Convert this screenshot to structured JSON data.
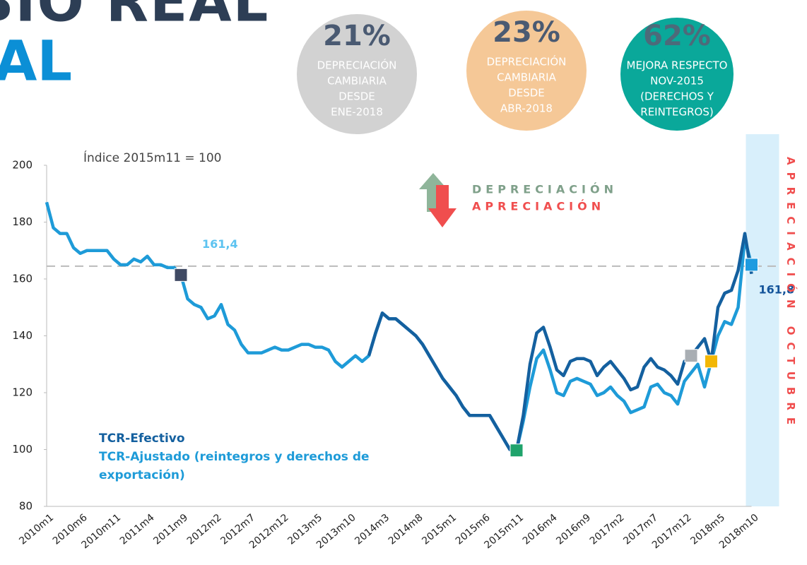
{
  "chart_data": {
    "type": "line",
    "title_fragments": [
      "BIO REAL",
      "AL"
    ],
    "subtitle": "Índice 2015m11 = 100",
    "categories": [
      "2010m1",
      null,
      null,
      null,
      null,
      "2010m6",
      null,
      null,
      null,
      null,
      "2010m11",
      null,
      null,
      null,
      null,
      "2011m4",
      null,
      null,
      null,
      null,
      "2011m9",
      null,
      null,
      null,
      null,
      "2012m2",
      null,
      null,
      null,
      null,
      "2012m7",
      null,
      null,
      null,
      null,
      "2012m12",
      null,
      null,
      null,
      null,
      "2013m5",
      null,
      null,
      null,
      null,
      "2013m10",
      null,
      null,
      null,
      null,
      "2014m3",
      null,
      null,
      null,
      null,
      "2014m8",
      null,
      null,
      null,
      null,
      "2015m1",
      null,
      null,
      null,
      null,
      "2015m6",
      null,
      null,
      null,
      null,
      "2015m11",
      null,
      null,
      null,
      null,
      "2016m4",
      null,
      null,
      null,
      null,
      "2016m9",
      null,
      null,
      null,
      null,
      "2017m2",
      null,
      null,
      null,
      null,
      "2017m7",
      null,
      null,
      null,
      null,
      "2017m12",
      null,
      null,
      null,
      null,
      "2018m5",
      null,
      null,
      null,
      null,
      "2018m10"
    ],
    "series": [
      {
        "name": "TCR-Efectivo",
        "color": "#14609f",
        "values": [
          null,
          null,
          null,
          null,
          null,
          null,
          null,
          null,
          null,
          null,
          null,
          null,
          null,
          null,
          null,
          null,
          null,
          null,
          null,
          null,
          null,
          null,
          null,
          null,
          null,
          null,
          null,
          null,
          null,
          null,
          null,
          null,
          null,
          null,
          null,
          null,
          null,
          null,
          null,
          null,
          null,
          null,
          null,
          null,
          null,
          null,
          null,
          null,
          133,
          141,
          148,
          146,
          146,
          144,
          142,
          140,
          137,
          133,
          129,
          125,
          122,
          119,
          115,
          112,
          112,
          112,
          112,
          108,
          104,
          100,
          99.7,
          112,
          130,
          141,
          143,
          136,
          128,
          126,
          131,
          132,
          132,
          131,
          126,
          129,
          131,
          128,
          125,
          121,
          122,
          129,
          132,
          129,
          128,
          126,
          123,
          131,
          133,
          136,
          139,
          131,
          150,
          155,
          156,
          163,
          176,
          161.8
        ]
      },
      {
        "name": "TCR-Ajustado (reintegros y derechos de exportación)",
        "color": "#1e9bd8",
        "values": [
          187,
          178,
          176,
          176,
          171,
          169,
          170,
          170,
          170,
          170,
          167,
          165,
          165,
          167,
          166,
          168,
          165,
          165,
          164,
          164,
          161.4,
          153,
          151,
          150,
          146,
          147,
          151,
          144,
          142,
          137,
          134,
          134,
          134,
          135,
          136,
          135,
          135,
          136,
          137,
          137,
          136,
          136,
          135,
          131,
          129,
          131,
          133,
          131,
          133,
          141,
          148,
          146,
          146,
          144,
          142,
          140,
          137,
          133,
          129,
          125,
          122,
          119,
          115,
          112,
          112,
          112,
          112,
          108,
          104,
          100,
          99.7,
          110,
          122,
          132,
          135,
          128,
          120,
          119,
          124,
          125,
          124,
          123,
          119,
          120,
          122,
          119,
          117,
          113,
          114,
          115,
          122,
          123,
          120,
          119,
          116,
          124,
          127,
          130,
          122,
          131,
          140,
          145,
          144,
          150,
          174,
          165
        ]
      }
    ],
    "ylim": [
      80,
      200
    ],
    "yticks": [
      80,
      100,
      120,
      140,
      160,
      180,
      200
    ],
    "reference_line": 164.5,
    "highlight": {
      "index": 105,
      "color": "#d8effb",
      "text": "APRECIACIÓN OCTUBRE",
      "text_color": "#f04e4e"
    },
    "markers": [
      {
        "series": 1,
        "index": 20,
        "color": "#3f4a63"
      },
      {
        "series": 1,
        "index": 70,
        "color": "#1fa36b"
      },
      {
        "series": 0,
        "index": 96,
        "color": "#a9aeb3"
      },
      {
        "series": 0,
        "index": 99,
        "color": "#f2b705"
      },
      {
        "series": 1,
        "index": 105,
        "color": "#1e9be0"
      }
    ],
    "annotations": [
      {
        "label": "161,4",
        "series": 1,
        "index": 20,
        "color": "#5cc3f0"
      },
      {
        "label": "161,8",
        "series": 0,
        "index": 105,
        "color": "#14549a"
      }
    ],
    "arrow_legend": [
      {
        "text": "DEPRECIACIÓN",
        "color": "#7fa08a"
      },
      {
        "text": "APRECIACIÓN",
        "color": "#f04e4e"
      }
    ],
    "bubbles": [
      {
        "value": 21,
        "label": "21%",
        "lines": [
          "DEPRECIACIÓN",
          "CAMBIARIA",
          "DESDE",
          "ENE-2018"
        ],
        "color": "#d2d2d2",
        "value_color": "#4a5a72"
      },
      {
        "value": 23,
        "label": "23%",
        "lines": [
          "DEPRECIACIÓN",
          "CAMBIARIA",
          "DESDE",
          "ABR-2018"
        ],
        "color": "#f5c897",
        "value_color": "#4a5a72"
      },
      {
        "value": 62,
        "label": "62%",
        "lines": [
          "MEJORA RESPECTO",
          "NOV-2015",
          "(DERECHOS Y",
          "REINTEGROS)"
        ],
        "color": "#0aa89a",
        "value_color": "#4d6a7a"
      }
    ]
  }
}
